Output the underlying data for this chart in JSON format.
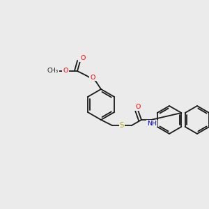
{
  "bg": "#ebebeb",
  "bond_color": "#1a1a1a",
  "lw": 1.3,
  "atom_colors": {
    "O": "#ff0000",
    "S": "#bbaa00",
    "N": "#0000ee",
    "C": "#1a1a1a"
  },
  "fs": 6.8
}
